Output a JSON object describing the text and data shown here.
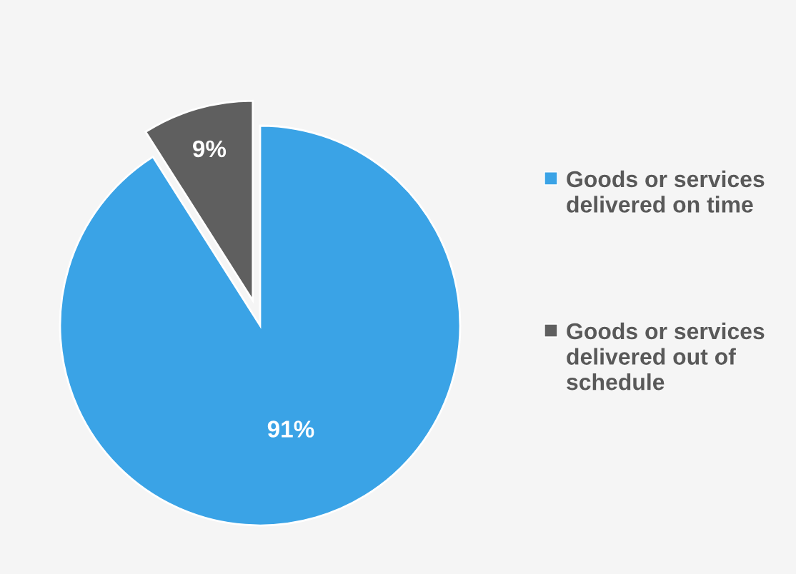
{
  "chart_data": {
    "type": "pie",
    "categories": [
      "Goods or services delivered on time",
      "Goods or services delivered out of schedule"
    ],
    "values": [
      91,
      9
    ],
    "colors": [
      "#3aa3e6",
      "#5f5f5f"
    ],
    "value_labels": [
      "91%",
      "9%"
    ],
    "legend": "right"
  }
}
